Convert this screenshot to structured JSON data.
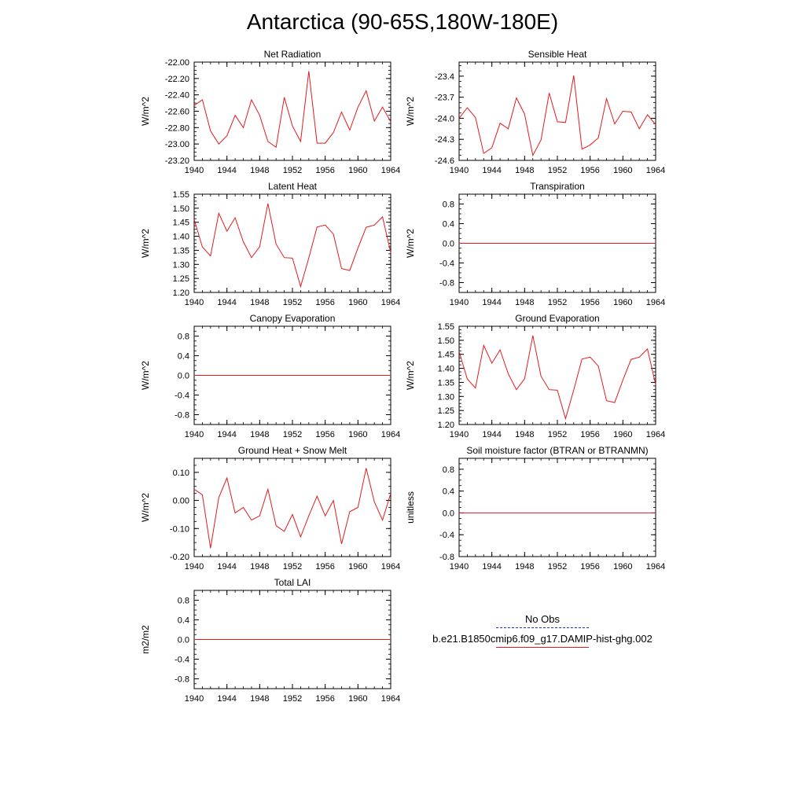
{
  "title": "Antarctica (90-65S,180W-180E)",
  "colors": {
    "model": "#e41a1c",
    "obs": "#2b2bd6",
    "axis": "#000000"
  },
  "legend": {
    "obs_label": "No Obs",
    "model_label": "b.e21.B1850cmip6.f09_g17.DAMIP-hist-ghg.002"
  },
  "chart_data": [
    {
      "type": "line",
      "title": "Net Radiation",
      "ylabel": "W/m^2",
      "ylim": [
        -23.2,
        -22.0
      ],
      "yticks": [
        "-22.00",
        "-22.20",
        "-22.40",
        "-22.60",
        "-22.80",
        "-23.00",
        "-23.20"
      ],
      "ytick_values": [
        -22.0,
        -22.2,
        -22.4,
        -22.6,
        -22.8,
        -23.0,
        -23.2
      ],
      "xlim": [
        1940,
        1964
      ],
      "xticks": [
        "1940",
        "1944",
        "1948",
        "1952",
        "1956",
        "1960",
        "1964"
      ],
      "x": [
        1940,
        1941,
        1942,
        1943,
        1944,
        1945,
        1946,
        1947,
        1948,
        1949,
        1950,
        1951,
        1952,
        1953,
        1954,
        1955,
        1956,
        1957,
        1958,
        1959,
        1960,
        1961,
        1962,
        1963,
        1964
      ],
      "series": [
        {
          "values": [
            -22.53,
            -22.46,
            -22.84,
            -23.0,
            -22.9,
            -22.65,
            -22.8,
            -22.46,
            -22.65,
            -22.97,
            -23.04,
            -22.43,
            -22.78,
            -22.97,
            -22.11,
            -22.99,
            -22.99,
            -22.86,
            -22.61,
            -22.83,
            -22.55,
            -22.35,
            -22.72,
            -22.55,
            -22.73
          ]
        }
      ]
    },
    {
      "type": "line",
      "title": "Sensible Heat",
      "ylabel": "W/m^2",
      "ylim": [
        -24.6,
        -23.2
      ],
      "yticks": [
        "-23.4",
        "-23.7",
        "-24.0",
        "-24.3",
        "-24.6"
      ],
      "ytick_values": [
        -23.4,
        -23.7,
        -24.0,
        -24.3,
        -24.6
      ],
      "xlim": [
        1940,
        1964
      ],
      "xticks": [
        "1940",
        "1944",
        "1948",
        "1952",
        "1956",
        "1960",
        "1964"
      ],
      "x": [
        1940,
        1941,
        1942,
        1943,
        1944,
        1945,
        1946,
        1947,
        1948,
        1949,
        1950,
        1951,
        1952,
        1953,
        1954,
        1955,
        1956,
        1957,
        1958,
        1959,
        1960,
        1961,
        1962,
        1963,
        1964
      ],
      "series": [
        {
          "values": [
            -24.0,
            -23.85,
            -23.99,
            -24.5,
            -24.42,
            -24.07,
            -24.15,
            -23.71,
            -23.94,
            -24.53,
            -24.31,
            -23.64,
            -24.05,
            -24.06,
            -23.39,
            -24.44,
            -24.38,
            -24.28,
            -23.72,
            -24.08,
            -23.9,
            -23.91,
            -24.15,
            -23.95,
            -24.09
          ]
        }
      ]
    },
    {
      "type": "line",
      "title": "Latent Heat",
      "ylabel": "W/m^2",
      "ylim": [
        1.2,
        1.55
      ],
      "yticks": [
        "1.55",
        "1.50",
        "1.45",
        "1.40",
        "1.35",
        "1.30",
        "1.25",
        "1.20"
      ],
      "ytick_values": [
        1.55,
        1.5,
        1.45,
        1.4,
        1.35,
        1.3,
        1.25,
        1.2
      ],
      "xlim": [
        1940,
        1964
      ],
      "xticks": [
        "1940",
        "1944",
        "1948",
        "1952",
        "1956",
        "1960",
        "1964"
      ],
      "x": [
        1940,
        1941,
        1942,
        1943,
        1944,
        1945,
        1946,
        1947,
        1948,
        1949,
        1950,
        1951,
        1952,
        1953,
        1954,
        1955,
        1956,
        1957,
        1958,
        1959,
        1960,
        1961,
        1962,
        1963,
        1964
      ],
      "series": [
        {
          "values": [
            1.46,
            1.362,
            1.33,
            1.482,
            1.418,
            1.466,
            1.381,
            1.324,
            1.363,
            1.517,
            1.372,
            1.324,
            1.322,
            1.221,
            1.323,
            1.433,
            1.44,
            1.408,
            1.285,
            1.278,
            1.358,
            1.432,
            1.44,
            1.469,
            1.342
          ]
        }
      ]
    },
    {
      "type": "line",
      "title": "Transpiration",
      "ylabel": "W/m^2",
      "ylim": [
        -1.0,
        1.0
      ],
      "yticks": [
        "0.8",
        "0.4",
        "0.0",
        "-0.4",
        "-0.8"
      ],
      "ytick_values": [
        0.8,
        0.4,
        0.0,
        -0.4,
        -0.8
      ],
      "xlim": [
        1940,
        1964
      ],
      "xticks": [
        "1940",
        "1944",
        "1948",
        "1952",
        "1956",
        "1960",
        "1964"
      ],
      "x": [
        1940,
        1964
      ],
      "series": [
        {
          "values": [
            0.0,
            0.0
          ]
        }
      ]
    },
    {
      "type": "line",
      "title": "Canopy Evaporation",
      "ylabel": "W/m^2",
      "ylim": [
        -1.0,
        1.0
      ],
      "yticks": [
        "0.8",
        "0.4",
        "0.0",
        "-0.4",
        "-0.8"
      ],
      "ytick_values": [
        0.8,
        0.4,
        0.0,
        -0.4,
        -0.8
      ],
      "xlim": [
        1940,
        1964
      ],
      "xticks": [
        "1940",
        "1944",
        "1948",
        "1952",
        "1956",
        "1960",
        "1964"
      ],
      "x": [
        1940,
        1964
      ],
      "series": [
        {
          "values": [
            0.0,
            0.0
          ]
        }
      ]
    },
    {
      "type": "line",
      "title": "Ground Evaporation",
      "ylabel": "W/m^2",
      "ylim": [
        1.2,
        1.55
      ],
      "yticks": [
        "1.55",
        "1.50",
        "1.45",
        "1.40",
        "1.35",
        "1.30",
        "1.25",
        "1.20"
      ],
      "ytick_values": [
        1.55,
        1.5,
        1.45,
        1.4,
        1.35,
        1.3,
        1.25,
        1.2
      ],
      "xlim": [
        1940,
        1964
      ],
      "xticks": [
        "1940",
        "1944",
        "1948",
        "1952",
        "1956",
        "1960",
        "1964"
      ],
      "x": [
        1940,
        1941,
        1942,
        1943,
        1944,
        1945,
        1946,
        1947,
        1948,
        1949,
        1950,
        1951,
        1952,
        1953,
        1954,
        1955,
        1956,
        1957,
        1958,
        1959,
        1960,
        1961,
        1962,
        1963,
        1964
      ],
      "series": [
        {
          "values": [
            1.46,
            1.362,
            1.33,
            1.482,
            1.418,
            1.466,
            1.381,
            1.324,
            1.363,
            1.517,
            1.372,
            1.324,
            1.322,
            1.221,
            1.323,
            1.433,
            1.44,
            1.408,
            1.285,
            1.278,
            1.358,
            1.432,
            1.44,
            1.469,
            1.342
          ]
        }
      ]
    },
    {
      "type": "line",
      "title": "Ground Heat + Snow Melt",
      "ylabel": "W/m^2",
      "ylim": [
        -0.2,
        0.15
      ],
      "yticks": [
        "0.10",
        "0.00",
        "-0.10",
        "-0.20"
      ],
      "ytick_values": [
        0.1,
        0.0,
        -0.1,
        -0.2
      ],
      "xlim": [
        1940,
        1964
      ],
      "xticks": [
        "1940",
        "1944",
        "1948",
        "1952",
        "1956",
        "1960",
        "1964"
      ],
      "x": [
        1940,
        1941,
        1942,
        1943,
        1944,
        1945,
        1946,
        1947,
        1948,
        1949,
        1950,
        1951,
        1952,
        1953,
        1954,
        1955,
        1956,
        1957,
        1958,
        1959,
        1960,
        1961,
        1962,
        1963,
        1964
      ],
      "series": [
        {
          "values": [
            0.04,
            0.02,
            -0.17,
            0.01,
            0.08,
            -0.045,
            -0.025,
            -0.07,
            -0.055,
            0.04,
            -0.09,
            -0.11,
            -0.05,
            -0.13,
            -0.055,
            0.015,
            -0.055,
            0.0,
            -0.155,
            -0.04,
            -0.025,
            0.115,
            -0.005,
            -0.07,
            0.025
          ]
        }
      ]
    },
    {
      "type": "line",
      "title": "Soil moisture factor (BTRAN or BTRANMN)",
      "ylabel": "unitless",
      "ylim": [
        -0.8,
        1.0
      ],
      "yticks": [
        "0.8",
        "0.4",
        "0.0",
        "-0.4",
        "-0.8"
      ],
      "ytick_values": [
        0.8,
        0.4,
        0.0,
        -0.4,
        -0.8
      ],
      "xlim": [
        1940,
        1964
      ],
      "xticks": [
        "1940",
        "1944",
        "1948",
        "1952",
        "1956",
        "1960",
        "1964"
      ],
      "x": [
        1940,
        1964
      ],
      "series": [
        {
          "values": [
            0.0,
            0.0
          ]
        }
      ]
    },
    {
      "type": "line",
      "title": "Total LAI",
      "ylabel": "m2/m2",
      "ylim": [
        -1.0,
        1.0
      ],
      "yticks": [
        "0.8",
        "0.4",
        "0.0",
        "-0.4",
        "-0.8"
      ],
      "ytick_values": [
        0.8,
        0.4,
        0.0,
        -0.4,
        -0.8
      ],
      "xlim": [
        1940,
        1964
      ],
      "xticks": [
        "1940",
        "1944",
        "1948",
        "1952",
        "1956",
        "1960",
        "1964"
      ],
      "x": [
        1940,
        1964
      ],
      "series": [
        {
          "values": [
            0.0,
            0.0
          ]
        }
      ]
    }
  ]
}
